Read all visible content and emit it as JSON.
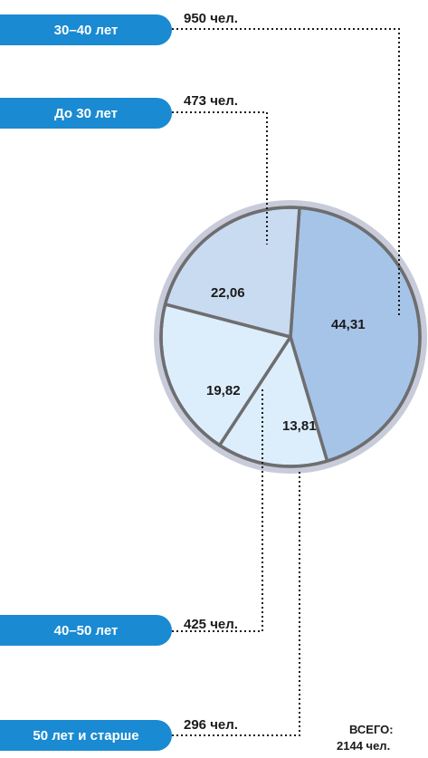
{
  "chart_data": {
    "type": "pie",
    "title": "",
    "slices": [
      {
        "label": "30–40 лет",
        "count": "950 чел.",
        "value": 44.31,
        "value_text": "44,31",
        "color": "#a6c4e8"
      },
      {
        "label": "До 30 лет",
        "count": "473 чел.",
        "value": 22.06,
        "value_text": "22,06",
        "color": "#c9dbf1"
      },
      {
        "label": "40–50 лет",
        "count": "425 чел.",
        "value": 19.82,
        "value_text": "19,82",
        "color": "#dceefb"
      },
      {
        "label": "50 лет и старше",
        "count": "296 чел.",
        "value": 13.81,
        "value_text": "13,81",
        "color": "#dceefb"
      }
    ],
    "total_label": "ВСЕГО:",
    "total_value": "2144 чел.",
    "colors": {
      "pill": "#1a8ad2",
      "ring": "#c8cbd9",
      "border": "#6e6e70"
    }
  }
}
